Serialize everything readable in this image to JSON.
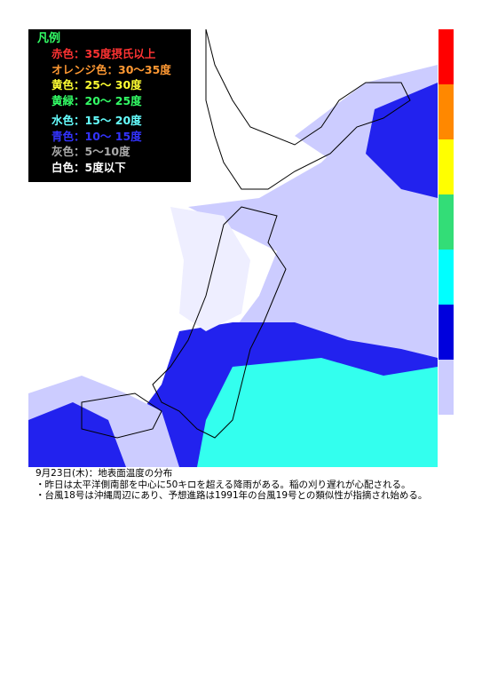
{
  "legend": {
    "title": "凡例",
    "items": [
      {
        "label": "赤色：35度摂氏以上",
        "color": "#ff3333"
      },
      {
        "label": "オレンジ色：30～35度",
        "color": "#ff9933"
      },
      {
        "label": "黄色：25～ 30度",
        "color": "#ffff33"
      },
      {
        "label": "黄緑：20～ 25度",
        "color": "#33ff66"
      },
      {
        "label": "水色：15～ 20度",
        "color": "#66ffff"
      },
      {
        "label": "青色：10～ 15度",
        "color": "#3333ff"
      },
      {
        "label": "灰色：5～10度",
        "color": "#aaaaaa"
      },
      {
        "label": "白色：5度以下",
        "color": "#ffffff"
      }
    ]
  },
  "scale_colors": [
    "#ff0000",
    "#ff8800",
    "#ffff00",
    "#33dd77",
    "#00ffff",
    "#0000dd",
    "#ccccff"
  ],
  "caption": {
    "date": "9月23日(木)：地表面温度の分布",
    "notes": [
      "・昨日は太平洋側南部を中心に50キロを超える降雨がある。稲の刈り遅れが心配される。",
      "・台風18号は沖縄周辺にあり、予想進路は1991年の台風19号との類似性が指摘され始める。"
    ]
  }
}
